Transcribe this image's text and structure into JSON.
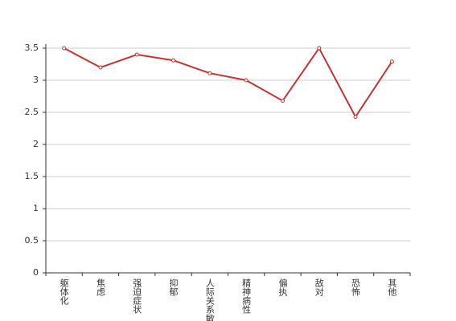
{
  "chart_data": {
    "type": "line",
    "categories": [
      "躯体化",
      "焦虑",
      "强迫症状",
      "抑郁",
      "人际关系敏感",
      "精神病性",
      "偏执",
      "敌对",
      "恐怖",
      "其他"
    ],
    "series": [
      {
        "color": "#c23531",
        "values": [
          3.5,
          3.2,
          3.4,
          3.31,
          3.11,
          3.0,
          2.68,
          3.5,
          2.43,
          3.29
        ]
      }
    ],
    "ylim": [
      0,
      3.5
    ],
    "yticks": [
      0,
      0.5,
      1,
      1.5,
      2,
      2.5,
      3,
      3.5
    ],
    "grid": true
  }
}
